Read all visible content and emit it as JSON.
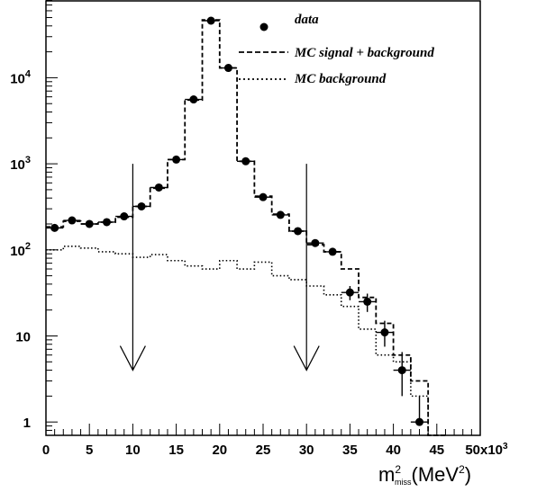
{
  "chart_data": {
    "type": "histogram",
    "xlim": [
      0,
      50
    ],
    "ylim_log": [
      0.7,
      80000
    ],
    "y_scale": "log",
    "x_axis_multiplier_label": "x10",
    "x_axis_multiplier_exponent": "3",
    "xlabel": {
      "base": "m",
      "sup": "2",
      "sub": "miss",
      "units_open": "(MeV",
      "units_sup": "2",
      "units_close": ")"
    },
    "x_ticks": [
      {
        "value": 0,
        "label": "0"
      },
      {
        "value": 5,
        "label": "5"
      },
      {
        "value": 10,
        "label": "10"
      },
      {
        "value": 15,
        "label": "15"
      },
      {
        "value": 20,
        "label": "20"
      },
      {
        "value": 25,
        "label": "25"
      },
      {
        "value": 30,
        "label": "30"
      },
      {
        "value": 35,
        "label": "35"
      },
      {
        "value": 40,
        "label": "40"
      },
      {
        "value": 45,
        "label": "45"
      },
      {
        "value": 50,
        "label": "50"
      }
    ],
    "y_ticks": [
      {
        "value": 1,
        "base": "1",
        "exp": ""
      },
      {
        "value": 10,
        "base": "10",
        "exp": ""
      },
      {
        "value": 100,
        "base": "10",
        "exp": "2"
      },
      {
        "value": 1000,
        "base": "10",
        "exp": "3"
      },
      {
        "value": 10000,
        "base": "10",
        "exp": "4"
      }
    ],
    "legend": {
      "placement": "top-right",
      "entries": [
        {
          "label": "data",
          "style": "marker"
        },
        {
          "label": "MC signal + background",
          "style": "dashed"
        },
        {
          "label": "MC background",
          "style": "dotted"
        }
      ]
    },
    "bin_edges": [
      0,
      2,
      4,
      6,
      8,
      10,
      12,
      14,
      16,
      18,
      20,
      22,
      24,
      26,
      28,
      30,
      32,
      34,
      36,
      38,
      40,
      42,
      44,
      46
    ],
    "series": [
      {
        "name": "data",
        "style": "points",
        "x": [
          1,
          3,
          5,
          7,
          9,
          11,
          13,
          15,
          17,
          19,
          21,
          23,
          25,
          27,
          29,
          31,
          33,
          35,
          37,
          39,
          41,
          43
        ],
        "y": [
          180,
          220,
          200,
          210,
          245,
          320,
          530,
          1120,
          5600,
          46000,
          13000,
          1070,
          410,
          255,
          165,
          120,
          95,
          32,
          25,
          11,
          4,
          1
        ],
        "yerr_low": [
          0,
          0,
          0,
          0,
          0,
          0,
          0,
          0,
          0,
          0,
          0,
          0,
          0,
          0,
          0,
          0,
          0,
          6,
          6,
          3.5,
          2,
          0
        ],
        "yerr_high": [
          0,
          0,
          0,
          0,
          0,
          0,
          0,
          0,
          0,
          0,
          0,
          0,
          0,
          0,
          0,
          0,
          0,
          6,
          6,
          4,
          2.5,
          1
        ]
      },
      {
        "name": "MC signal + background",
        "style": "dashed-step",
        "values": [
          185,
          215,
          200,
          210,
          240,
          320,
          520,
          1120,
          5500,
          47000,
          13000,
          1070,
          420,
          260,
          165,
          115,
          95,
          60,
          28,
          14,
          6,
          3,
          0.7
        ]
      },
      {
        "name": "MC background",
        "style": "dotted-step",
        "values": [
          100,
          110,
          105,
          95,
          90,
          82,
          88,
          75,
          65,
          60,
          75,
          60,
          72,
          50,
          45,
          38,
          30,
          22,
          12,
          6,
          5,
          2,
          0.7
        ]
      }
    ],
    "arrows": [
      {
        "x": 10,
        "from_y": 1000,
        "to_y": 4
      },
      {
        "x": 30,
        "from_y": 1000,
        "to_y": 4
      }
    ]
  }
}
